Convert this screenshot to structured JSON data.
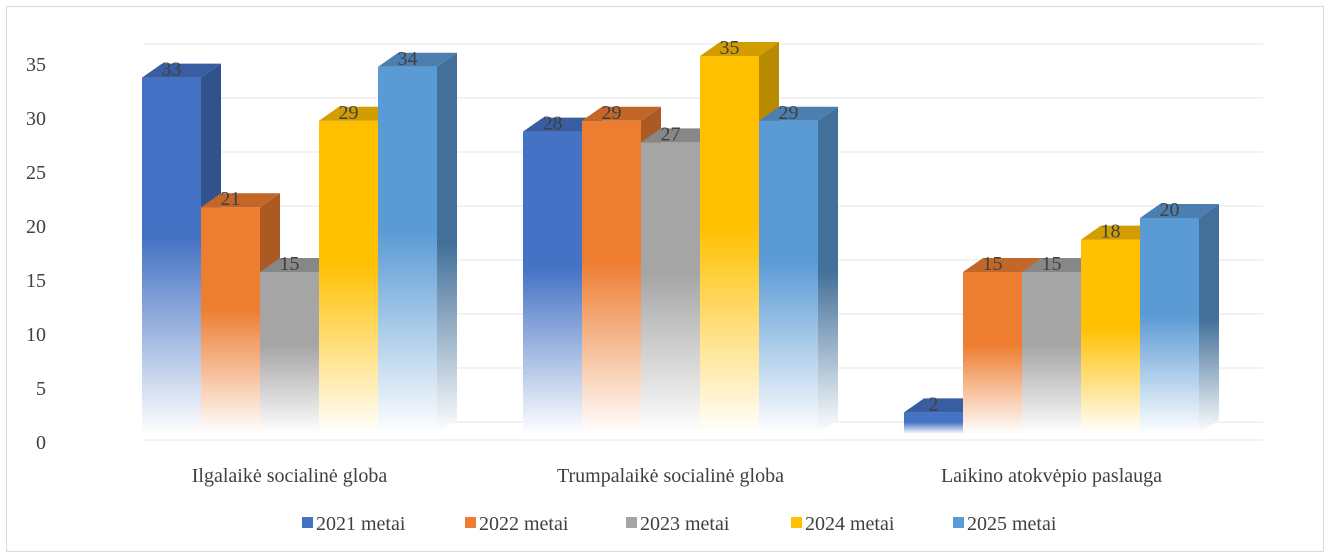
{
  "chart_data": {
    "type": "bar",
    "categories": [
      "Ilgalaikė socialinė globa",
      "Trumpalaikė socialinė globa",
      "Laikino atokvėpio paslauga"
    ],
    "series": [
      {
        "name": "2021 metai",
        "color": "#4472c4",
        "values": [
          33,
          28,
          2
        ]
      },
      {
        "name": "2022 metai",
        "color": "#ed7d31",
        "values": [
          21,
          29,
          15
        ]
      },
      {
        "name": "2023 metai",
        "color": "#a5a5a5",
        "values": [
          15,
          27,
          15
        ]
      },
      {
        "name": "2024 metai",
        "color": "#ffc000",
        "values": [
          29,
          35,
          18
        ]
      },
      {
        "name": "2025 metai",
        "color": "#5b9bd5",
        "values": [
          34,
          29,
          20
        ]
      }
    ],
    "yticks": [
      "0",
      "5",
      "10",
      "15",
      "20",
      "25",
      "30",
      "35"
    ],
    "ylim": [
      0,
      35
    ],
    "grid": true,
    "legend": "bottom",
    "style": "3d-clustered-column"
  }
}
